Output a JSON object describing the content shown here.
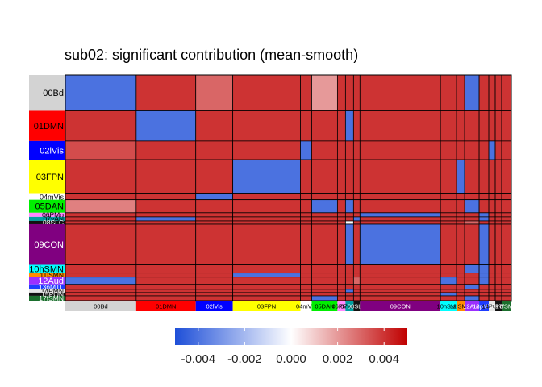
{
  "chart_data": {
    "type": "heatmap",
    "title": "sub02: significant contribution (mean-smooth)",
    "networks": [
      {
        "label": "00Bd",
        "size": 44,
        "color": "#d3d3d3",
        "text": "#000000"
      },
      {
        "label": "01DMN",
        "size": 37,
        "color": "#ff0000",
        "text": "#000000"
      },
      {
        "label": "02lVis",
        "size": 23,
        "color": "#0000ff",
        "text": "#ffffff"
      },
      {
        "label": "03FPN",
        "size": 42,
        "color": "#ffff00",
        "text": "#000000"
      },
      {
        "label": "04mVis",
        "size": 7,
        "color": "#ffffff",
        "text": "#000000"
      },
      {
        "label": "05DAN",
        "size": 16,
        "color": "#00ee00",
        "text": "#000000"
      },
      {
        "label": "06PMo",
        "size": 5,
        "color": "#ff88ff",
        "text": "#000000"
      },
      {
        "label": "07vAN",
        "size": 5,
        "color": "#00a0a0",
        "text": "#000000"
      },
      {
        "label": "08SLC",
        "size": 4,
        "color": "#111111",
        "text": "#ffffff"
      },
      {
        "label": "09CON",
        "size": 50,
        "color": "#800080",
        "text": "#ffffff"
      },
      {
        "label": "10hSMN",
        "size": 10,
        "color": "#00ffff",
        "text": "#000000"
      },
      {
        "label": "11lSMN",
        "size": 5,
        "color": "#ff8c00",
        "text": "#000000"
      },
      {
        "label": "12Aud",
        "size": 9,
        "color": "#9b30ff",
        "text": "#ffffff"
      },
      {
        "label": "13pMTL",
        "size": 6,
        "color": "#1e3cff",
        "text": "#ffffff"
      },
      {
        "label": "14PMN",
        "size": 4,
        "color": "#e6e6e6",
        "text": "#000000"
      },
      {
        "label": "15PON",
        "size": 4,
        "color": "#111111",
        "text": "#ffffff"
      },
      {
        "label": "17fSMN",
        "size": 6,
        "color": "#1b6f2d",
        "text": "#ffffff"
      }
    ],
    "matrix": [
      [
        -0.004,
        0.004,
        0.003,
        0.004,
        0.004,
        0.002,
        0.004,
        0.004,
        0.004,
        0.004,
        0.004,
        0.004,
        -0.004,
        0.004,
        0.004,
        0.004,
        0.004
      ],
      [
        0.004,
        -0.004,
        0.004,
        0.004,
        0.004,
        0.004,
        0.004,
        -0.004,
        0.004,
        0.004,
        0.004,
        0.004,
        0.004,
        0.004,
        0.004,
        0.004,
        0.004
      ],
      [
        0.0035,
        0.004,
        0.004,
        0.004,
        -0.004,
        0.004,
        0.004,
        0.004,
        0.004,
        0.004,
        0.004,
        0.004,
        0.004,
        0.004,
        -0.004,
        0.004,
        0.004
      ],
      [
        0.004,
        0.004,
        0.004,
        -0.004,
        0.004,
        0.004,
        0.004,
        0.004,
        0.004,
        0.004,
        0.004,
        -0.004,
        0.004,
        0.004,
        0.004,
        0.004,
        0.004
      ],
      [
        0.004,
        0.004,
        -0.004,
        0.004,
        0.004,
        0.004,
        0.004,
        0.004,
        0.004,
        0.004,
        0.004,
        0.004,
        0.004,
        0.004,
        0.004,
        0.004,
        0.004
      ],
      [
        0.0025,
        0.004,
        0.004,
        0.004,
        0.004,
        -0.004,
        0.004,
        -0.004,
        0.004,
        0.004,
        0.004,
        0.004,
        -0.004,
        0.004,
        0.004,
        0.004,
        0.004
      ],
      [
        0.004,
        0.004,
        0.004,
        0.004,
        0.004,
        0.004,
        0.004,
        0.004,
        0.004,
        -0.004,
        0.004,
        0.004,
        0.004,
        -0.004,
        0.004,
        0.004,
        0.004
      ],
      [
        0.004,
        -0.004,
        0.004,
        0.004,
        0.004,
        0.004,
        0.004,
        0.004,
        -0.004,
        0.004,
        0.004,
        0.004,
        0.004,
        -0.004,
        0.004,
        0.004,
        0.004
      ],
      [
        0.004,
        0.004,
        0.004,
        0.004,
        0.004,
        0.004,
        0.004,
        0.0,
        0.004,
        0.004,
        0.004,
        0.004,
        0.003,
        0.004,
        0.004,
        0.004,
        0.004
      ],
      [
        0.004,
        0.004,
        0.004,
        0.004,
        0.004,
        0.004,
        0.004,
        -0.004,
        0.004,
        -0.004,
        0.004,
        0.004,
        0.004,
        -0.004,
        0.004,
        0.004,
        0.004
      ],
      [
        0.004,
        0.004,
        0.004,
        0.004,
        0.004,
        0.004,
        0.004,
        0.004,
        0.004,
        0.004,
        0.004,
        0.004,
        -0.004,
        -0.004,
        0.004,
        0.004,
        0.004
      ],
      [
        0.004,
        0.004,
        0.004,
        -0.004,
        0.004,
        0.004,
        0.004,
        0.004,
        0.004,
        0.004,
        0.004,
        0.004,
        0.004,
        -0.004,
        0.004,
        0.004,
        0.004
      ],
      [
        -0.004,
        0.004,
        0.004,
        0.004,
        0.004,
        0.004,
        0.004,
        0.004,
        0.003,
        0.004,
        -0.004,
        0.004,
        0.004,
        -0.004,
        0.004,
        0.004,
        0.004
      ],
      [
        0.004,
        0.004,
        0.004,
        0.004,
        0.004,
        0.004,
        0.004,
        0.004,
        0.004,
        0.004,
        0.004,
        0.004,
        -0.004,
        0.004,
        0.004,
        0.004,
        0.004
      ],
      [
        0.004,
        0.004,
        0.004,
        0.004,
        0.004,
        0.004,
        0.004,
        -0.004,
        0.004,
        0.004,
        0.004,
        0.004,
        0.004,
        0.004,
        0.004,
        0.004,
        0.004
      ],
      [
        0.004,
        0.004,
        0.004,
        0.004,
        0.004,
        0.004,
        0.004,
        0.004,
        0.004,
        0.004,
        -0.004,
        0.004,
        0.004,
        0.004,
        0.004,
        0.004,
        0.004
      ],
      [
        0.004,
        0.004,
        0.004,
        0.004,
        0.004,
        -0.004,
        0.004,
        0.004,
        0.004,
        0.004,
        0.004,
        0.004,
        -0.004,
        0.004,
        0.004,
        0.004,
        0.004
      ]
    ],
    "colorbar": {
      "range": [
        -0.005,
        0.005
      ],
      "ticks": [
        -0.004,
        -0.002,
        0.0,
        0.002,
        0.004
      ],
      "tick_labels": [
        "-0.004",
        "-0.002",
        "0.000",
        "0.002",
        "0.004"
      ],
      "low_color": "#1e4fd8",
      "mid_color": "#ffffff",
      "high_color": "#c00000",
      "position": "bottom"
    },
    "grid": true
  }
}
